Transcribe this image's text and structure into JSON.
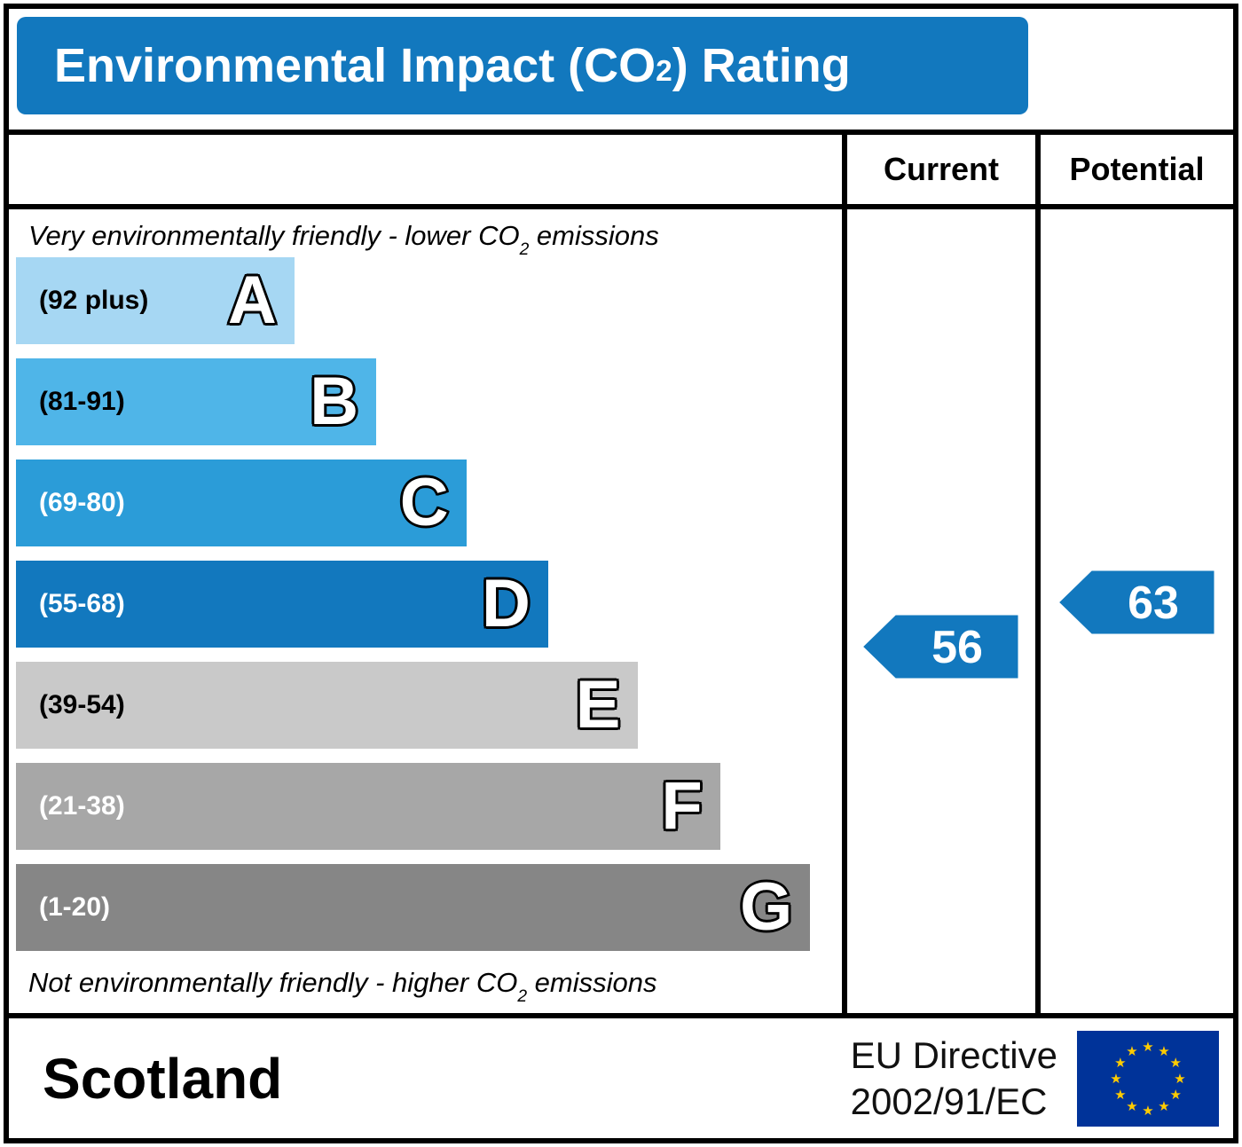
{
  "title": {
    "pre": "Environmental Impact (CO",
    "sub": "2",
    "post": ") Rating"
  },
  "header": {
    "current": "Current",
    "potential": "Potential"
  },
  "notes": {
    "top": {
      "pre": "Very environmentally friendly - lower CO",
      "sub": "2",
      "post": " emissions"
    },
    "bottom": {
      "pre": "Not environmentally friendly - higher CO",
      "sub": "2",
      "post": " emissions"
    }
  },
  "footer": {
    "region": "Scotland",
    "directive_line1": "EU Directive",
    "directive_line2": "2002/91/EC"
  },
  "colors": {
    "accent_blue": "#1278be",
    "title_bg": "#1278be",
    "arrow_fill": "#1278be",
    "eu_flag_bg": "#003399",
    "eu_star": "#ffcc00"
  },
  "chart_data": {
    "type": "bar",
    "title": "Environmental Impact (CO2) Rating",
    "bands": [
      {
        "letter": "A",
        "range_label": "(92 plus)",
        "min": 92,
        "max": 100,
        "color": "#a6d7f3",
        "label_color": "#000000",
        "width_pct": 34
      },
      {
        "letter": "B",
        "range_label": "(81-91)",
        "min": 81,
        "max": 91,
        "color": "#4fb5e8",
        "label_color": "#000000",
        "width_pct": 44
      },
      {
        "letter": "C",
        "range_label": "(69-80)",
        "min": 69,
        "max": 80,
        "color": "#2b9cd8",
        "label_color": "#ffffff",
        "width_pct": 55
      },
      {
        "letter": "D",
        "range_label": "(55-68)",
        "min": 55,
        "max": 68,
        "color": "#1278be",
        "label_color": "#ffffff",
        "width_pct": 65
      },
      {
        "letter": "E",
        "range_label": "(39-54)",
        "min": 39,
        "max": 54,
        "color": "#c9c9c9",
        "label_color": "#000000",
        "width_pct": 76
      },
      {
        "letter": "F",
        "range_label": "(21-38)",
        "min": 21,
        "max": 38,
        "color": "#a7a7a7",
        "label_color": "#ffffff",
        "width_pct": 86
      },
      {
        "letter": "G",
        "range_label": "(1-20)",
        "min": 1,
        "max": 20,
        "color": "#868686",
        "label_color": "#ffffff",
        "width_pct": 97
      }
    ],
    "current": {
      "value": "56",
      "band": "D"
    },
    "potential": {
      "value": "63",
      "band": "D"
    }
  }
}
